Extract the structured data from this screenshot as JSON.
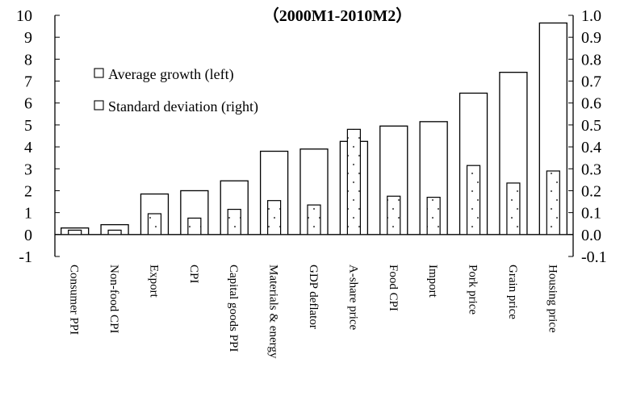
{
  "chart_data": {
    "type": "bar",
    "title": "（2000M1-2010M2）",
    "categories": [
      "Consumer PPI",
      "Non-food CPI",
      "Export",
      "CPI",
      "Capital goods PPI",
      "Materials & energy",
      "GDP deflator",
      "A-share price",
      "Food CPI",
      "Import",
      "Pork price",
      "Grain price",
      "Housing price"
    ],
    "series": [
      {
        "name": "Average growth (left)",
        "axis": "left",
        "fill": "white",
        "values": [
          0.3,
          0.45,
          1.85,
          2.0,
          2.45,
          3.8,
          3.9,
          4.25,
          4.95,
          5.15,
          6.45,
          7.4,
          9.65
        ]
      },
      {
        "name": "Standard deviation (right)",
        "axis": "right",
        "fill": "dotted",
        "values": [
          0.02,
          0.02,
          0.095,
          0.075,
          0.115,
          0.155,
          0.135,
          0.48,
          0.175,
          0.17,
          0.315,
          0.235,
          0.29
        ]
      }
    ],
    "y_left": {
      "min": -1,
      "max": 10,
      "ticks": [
        "-1",
        "0",
        "1",
        "2",
        "3",
        "4",
        "5",
        "6",
        "7",
        "8",
        "9",
        "10"
      ]
    },
    "y_right": {
      "min": -0.1,
      "max": 1.0,
      "ticks": [
        "-0.1",
        "0.0",
        "0.1",
        "0.2",
        "0.3",
        "0.4",
        "0.5",
        "0.6",
        "0.7",
        "0.8",
        "0.9",
        "1.0"
      ]
    },
    "legend_position": "top-left",
    "grid": false,
    "colors": {
      "stroke": "#000000",
      "fill": "#ffffff",
      "dot": "#555555"
    }
  }
}
